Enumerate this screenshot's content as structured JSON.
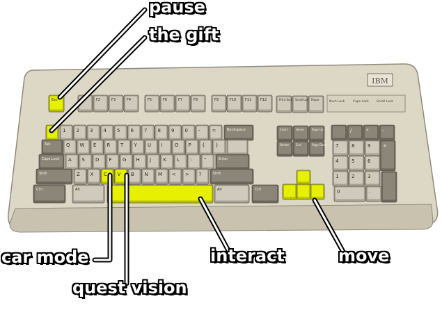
{
  "brand": {
    "logo_text": "IBM"
  },
  "labels": {
    "pause": "pause",
    "gift": "the gift",
    "car_mode": "car mode",
    "quest_vision": "quest vision",
    "interact": "interact",
    "move": "move"
  },
  "keys": {
    "esc": "Esc",
    "f1": "F1",
    "f2": "F2",
    "f3": "F3",
    "f4": "F4",
    "f5": "F5",
    "f6": "F6",
    "f7": "F7",
    "f8": "F8",
    "f9": "F9",
    "f10": "F10",
    "f11": "F11",
    "f12": "F12",
    "print": "Print Screen",
    "scroll": "Scroll Lock",
    "pause": "Pause",
    "num_lock": "Num Lock",
    "caps_lock_led": "Caps Lock",
    "scroll_lock_led": "Scroll Lock",
    "tab": "Tab",
    "caps": "Caps Lock",
    "shift": "Shift",
    "ctrl": "Ctrl",
    "alt": "Alt",
    "backspace": "Backspace",
    "enter": "Enter",
    "insert": "Insert",
    "home": "Home",
    "page_up": "Page Up",
    "delete": "Delete",
    "end": "End",
    "page_down": "Page Down",
    "row_num": [
      "1",
      "2",
      "3",
      "4",
      "5",
      "6",
      "7",
      "8",
      "9",
      "0",
      "-",
      "="
    ],
    "row_q": [
      "Q",
      "W",
      "E",
      "R",
      "T",
      "Y",
      "U",
      "I",
      "O",
      "P",
      "{",
      "}"
    ],
    "row_a": [
      "A",
      "S",
      "D",
      "F",
      "G",
      "H",
      "J",
      "K",
      "L",
      ":",
      "\""
    ],
    "row_z": [
      "Z",
      "X",
      "C",
      "V",
      "B",
      "N",
      "M",
      "<",
      ">",
      "?"
    ],
    "numpad": [
      "7",
      "8",
      "9",
      "4",
      "5",
      "6",
      "1",
      "2",
      "3",
      "0",
      "."
    ]
  },
  "colors": {
    "highlight": "#e6f000",
    "case": "#dcd6c4",
    "key_light": "#cfcabb",
    "key_dark": "#8b8678"
  }
}
